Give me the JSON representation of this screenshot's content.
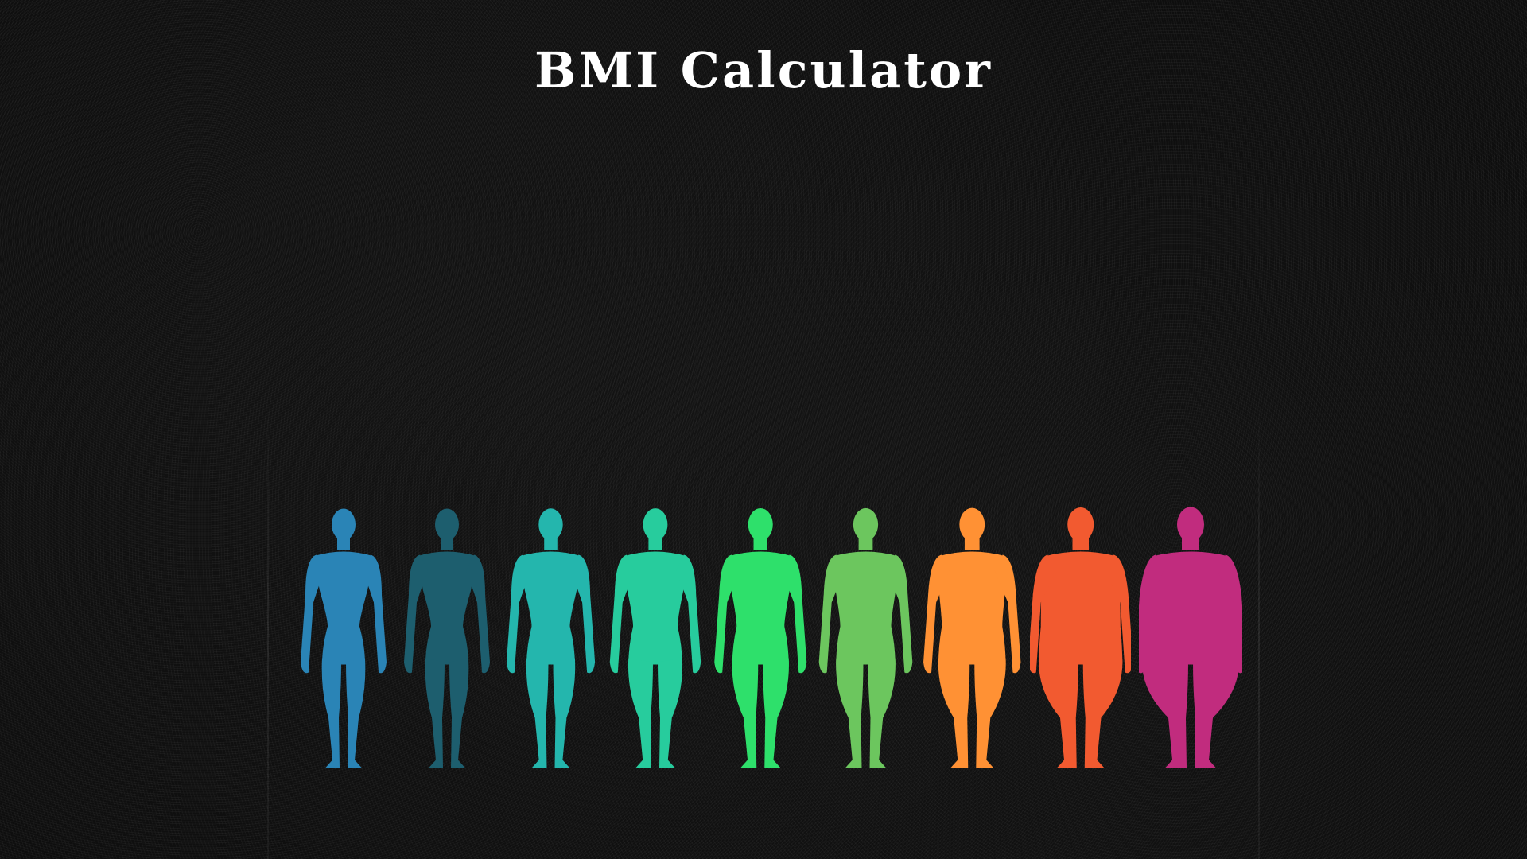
{
  "page": {
    "title": "BMI Calculator"
  },
  "figures": [
    {
      "color": "#2a84b6",
      "build": 0
    },
    {
      "color": "#1d5e6e",
      "build": 0
    },
    {
      "color": "#24b6ad",
      "build": 0.1
    },
    {
      "color": "#27cc9d",
      "build": 0.2
    },
    {
      "color": "#2ee06b",
      "build": 0.25
    },
    {
      "color": "#6cc65e",
      "build": 0.3
    },
    {
      "color": "#ff9134",
      "build": 0.45
    },
    {
      "color": "#f25a30",
      "build": 0.75
    },
    {
      "color": "#c12c7e",
      "build": 1
    }
  ]
}
